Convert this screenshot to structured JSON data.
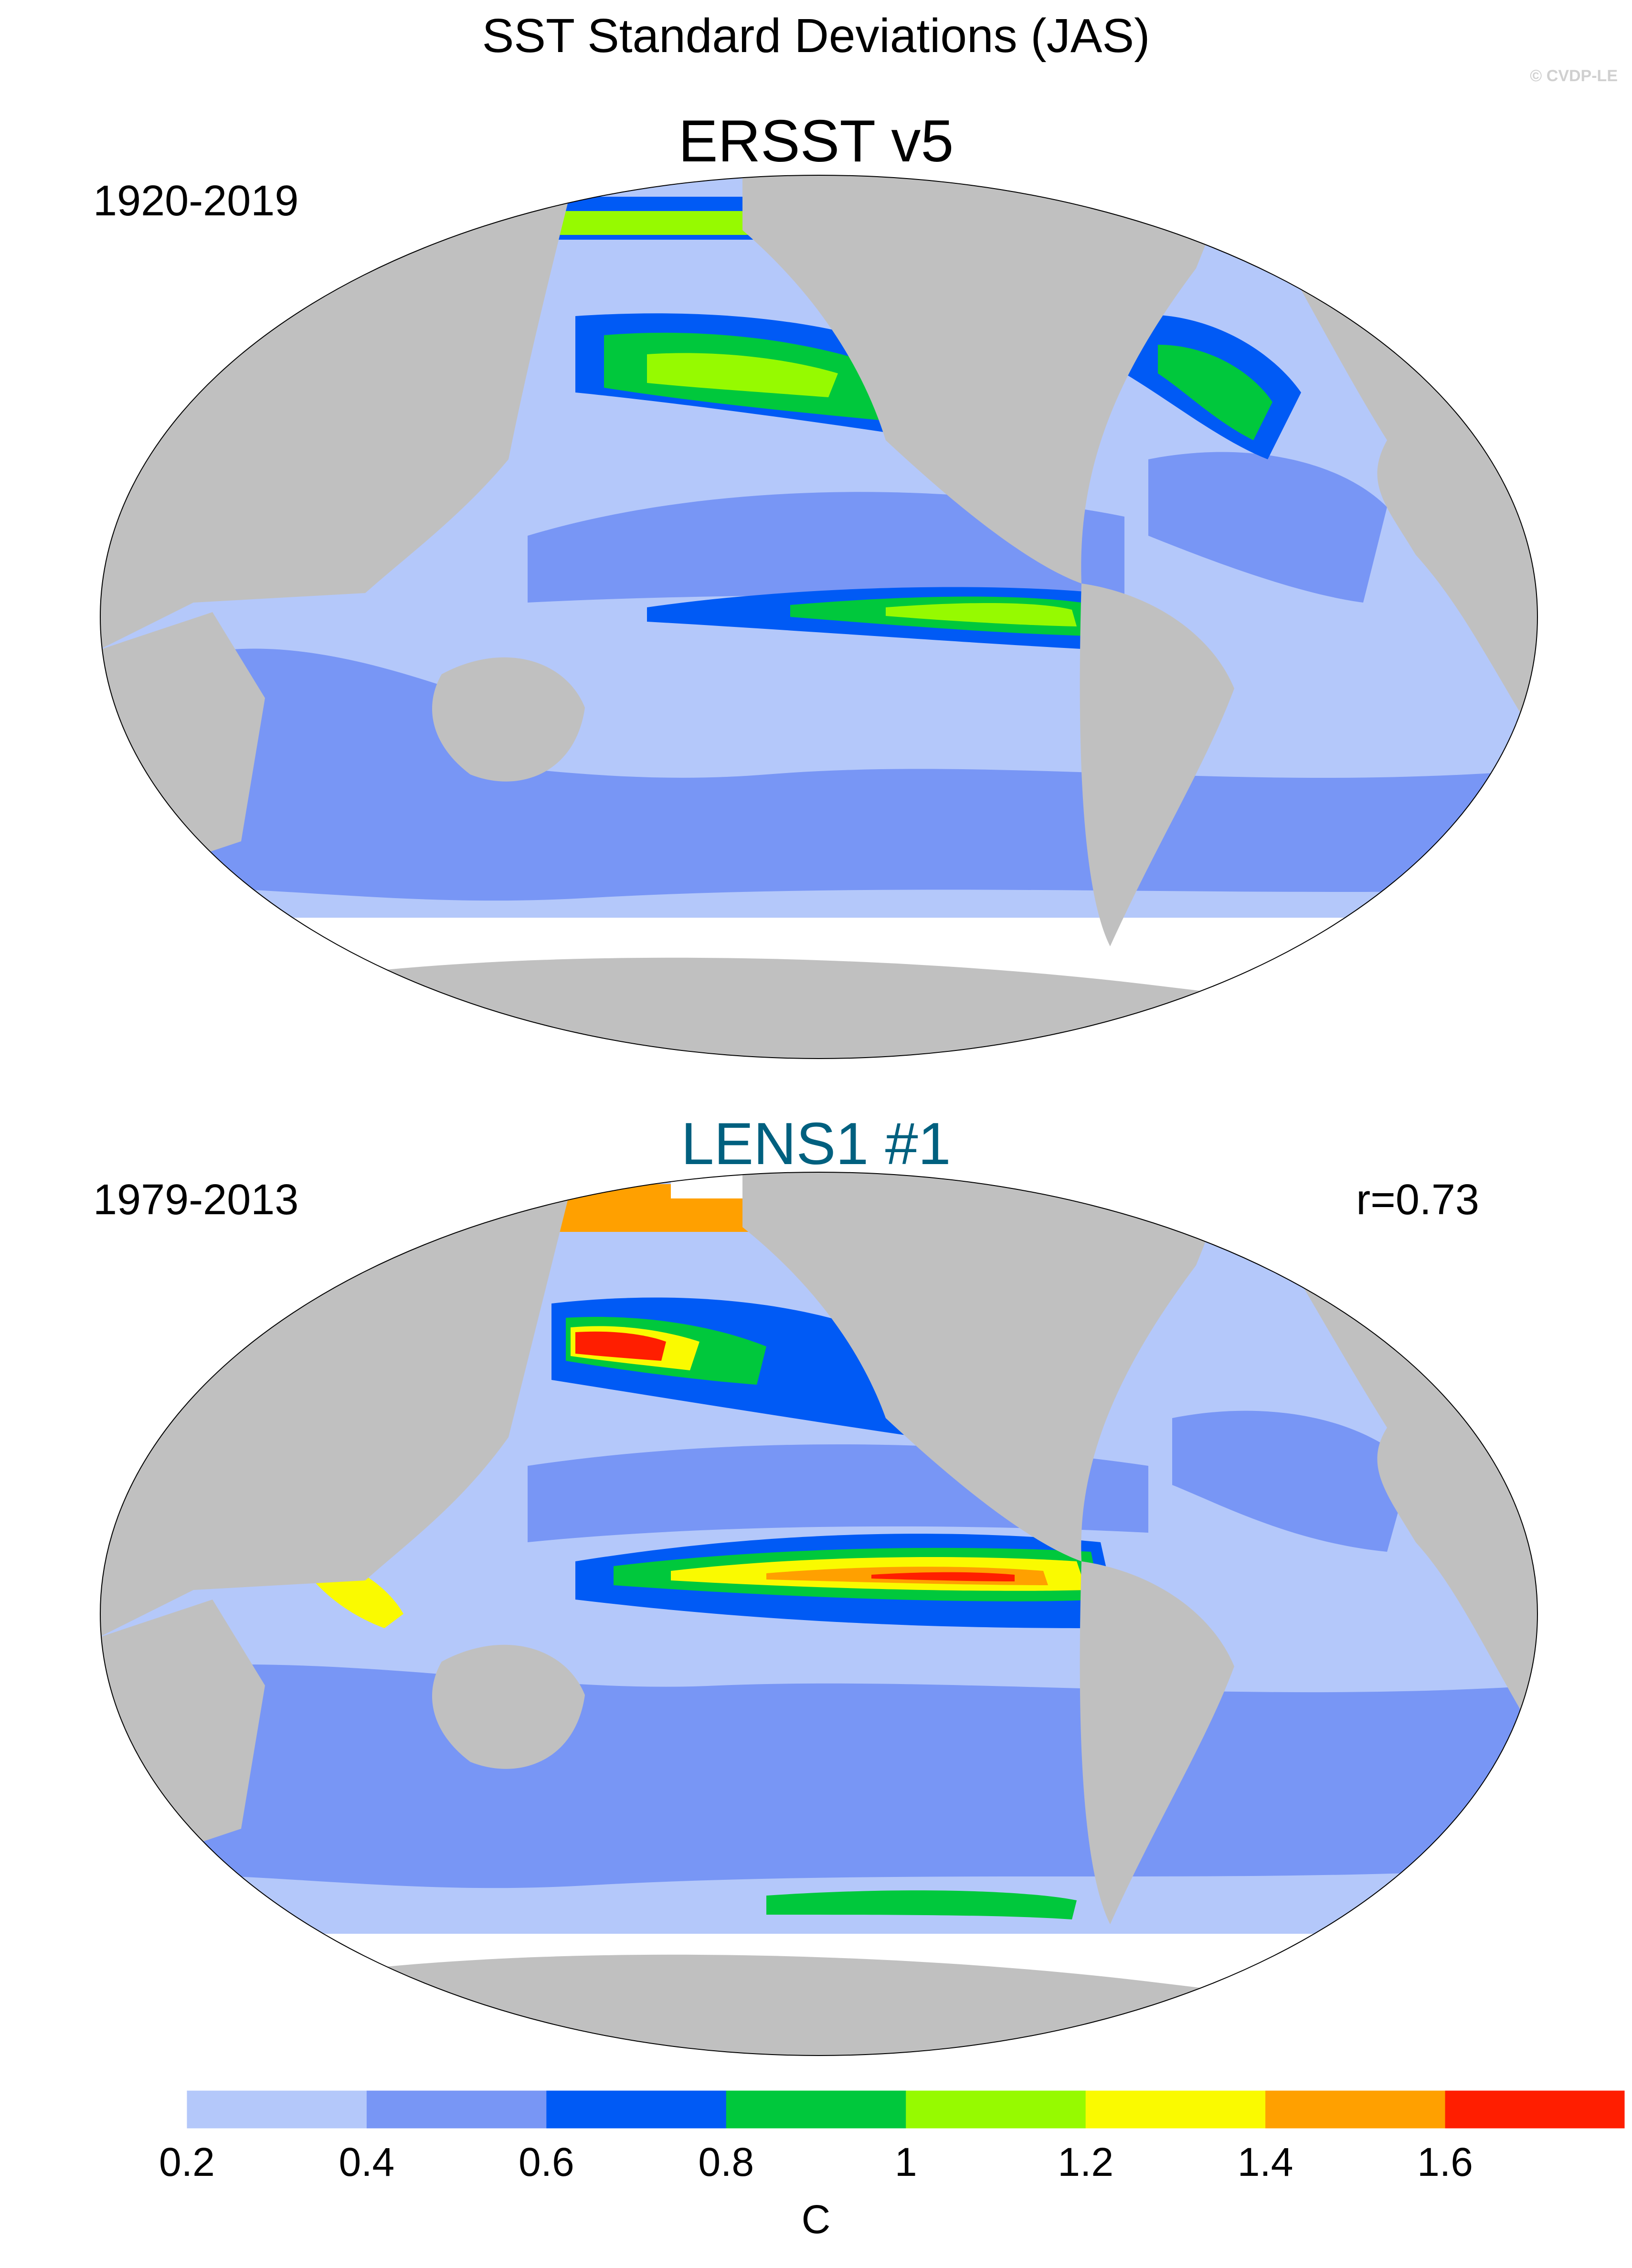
{
  "title": "SST Standard Deviations (JAS)",
  "copyright": "© CVDP-LE",
  "colors": {
    "land": "#c0c0c0",
    "lens_title": "#00607f"
  },
  "panels": [
    {
      "title": "ERSST v5",
      "period": "1920-2019",
      "correlation": ""
    },
    {
      "title": "LENS1 #1",
      "period": "1979-2013",
      "correlation": "r=0.73"
    }
  ],
  "colorbar": {
    "units": "C",
    "ticks": [
      "0.2",
      "0.4",
      "0.6",
      "0.8",
      "1",
      "1.2",
      "1.4",
      "1.6"
    ],
    "levels": [
      0.2,
      0.4,
      0.6,
      0.8,
      1.0,
      1.2,
      1.4,
      1.6
    ],
    "colors": [
      "#ffffff",
      "#b4c8fa",
      "#7896f5",
      "#005af5",
      "#00c83c",
      "#96fa00",
      "#fafa00",
      "#ffa000",
      "#ff1e00"
    ]
  }
}
